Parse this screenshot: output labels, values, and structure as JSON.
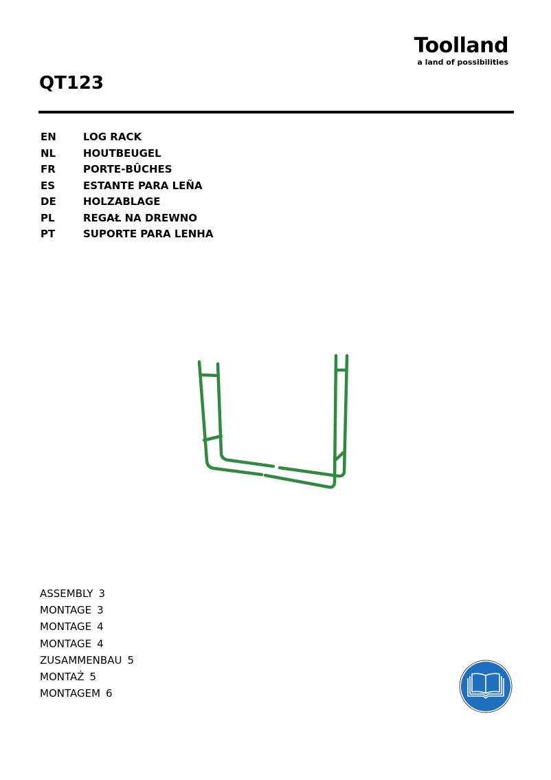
{
  "brand": {
    "name": "Toolland",
    "tagline": "a land of possibilities"
  },
  "model": "QT123",
  "titles": [
    {
      "code": "EN",
      "title": "LOG RACK"
    },
    {
      "code": "NL",
      "title": "HOUTBEUGEL"
    },
    {
      "code": "FR",
      "title": "PORTE-BÛCHES"
    },
    {
      "code": "ES",
      "title": "ESTANTE PARA LEÑA"
    },
    {
      "code": "DE",
      "title": "HOLZABLAGE"
    },
    {
      "code": "PL",
      "title": "REGAŁ NA DREWNO"
    },
    {
      "code": "PT",
      "title": "SUPORTE PARA LENHA"
    }
  ],
  "toc": [
    {
      "label": "ASSEMBLY",
      "page": "3"
    },
    {
      "label": "MONTAGE",
      "page": "3"
    },
    {
      "label": "MONTAGE",
      "page": "4"
    },
    {
      "label": "MONTAGE",
      "page": "4"
    },
    {
      "label": "ZUSAMMENBAU",
      "page": "5"
    },
    {
      "label": "MONTAŻ",
      "page": "5"
    },
    {
      "label": "MONTAGEM",
      "page": "6"
    }
  ],
  "icons": {
    "product": "log-rack-illustration",
    "manual": "read-manual-icon"
  },
  "colors": {
    "rack": "#2f8a3f",
    "manual_icon": "#1f6fbf"
  }
}
